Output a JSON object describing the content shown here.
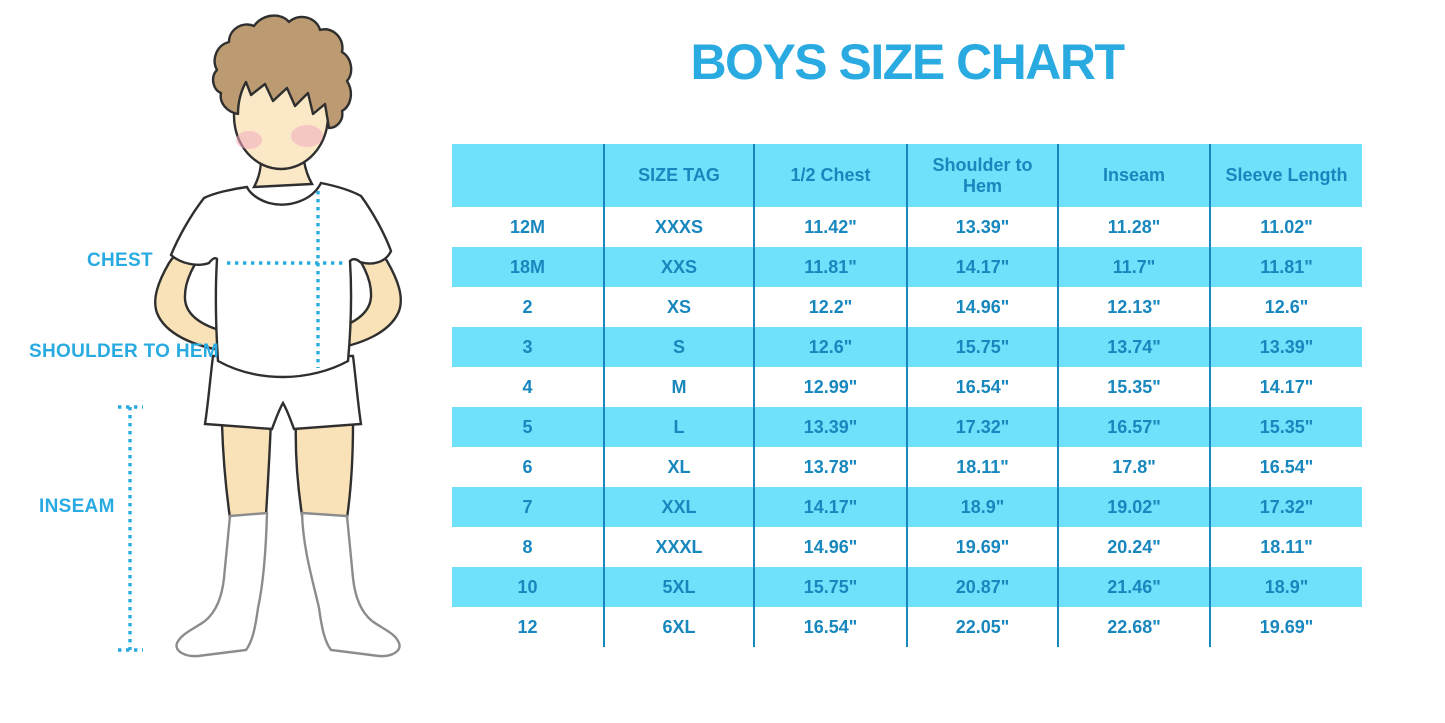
{
  "title": "BOYS SIZE CHART",
  "figure": {
    "illustration": "cartoon boy in white t-shirt, shorts and knee socks with dotted measurement guides",
    "chest_label": "CHEST",
    "shoulder_to_hem_label": "SHOULDER TO HEM",
    "inseam_label": "INSEAM"
  },
  "colors": {
    "title_blue": "#29ABE2",
    "measure_blue": "#29ABE2",
    "table_fill": "#70E1FA",
    "table_text": "#1787BE",
    "table_line": "#1787BE",
    "skin": "#FBE8C6",
    "limb_skin": "#F9E2B8",
    "hair": "#BD9B72",
    "blush": "#F2A9C0",
    "outline": "#2F2F2F",
    "sock_outline": "#8C8C8C"
  },
  "chart_data": {
    "type": "table",
    "title": "BOYS SIZE CHART",
    "columns": [
      "",
      "SIZE TAG",
      "1/2 Chest",
      "Shoulder to Hem",
      "Inseam",
      "Sleeve Length"
    ],
    "rows": [
      [
        "12M",
        "XXXS",
        "11.42\"",
        "13.39\"",
        "11.28\"",
        "11.02\""
      ],
      [
        "18M",
        "XXS",
        "11.81\"",
        "14.17\"",
        "11.7\"",
        "11.81\""
      ],
      [
        "2",
        "XS",
        "12.2\"",
        "14.96\"",
        "12.13\"",
        "12.6\""
      ],
      [
        "3",
        "S",
        "12.6\"",
        "15.75\"",
        "13.74\"",
        "13.39\""
      ],
      [
        "4",
        "M",
        "12.99\"",
        "16.54\"",
        "15.35\"",
        "14.17\""
      ],
      [
        "5",
        "L",
        "13.39\"",
        "17.32\"",
        "16.57\"",
        "15.35\""
      ],
      [
        "6",
        "XL",
        "13.78\"",
        "18.11\"",
        "17.8\"",
        "16.54\""
      ],
      [
        "7",
        "XXL",
        "14.17\"",
        "18.9\"",
        "19.02\"",
        "17.32\""
      ],
      [
        "8",
        "XXXL",
        "14.96\"",
        "19.69\"",
        "20.24\"",
        "18.11\""
      ],
      [
        "10",
        "5XL",
        "15.75\"",
        "20.87\"",
        "21.46\"",
        "18.9\""
      ],
      [
        "12",
        "6XL",
        "16.54\"",
        "22.05\"",
        "22.68\"",
        "19.69\""
      ]
    ],
    "layout": {
      "header_background": "#70E1FA",
      "striped_rows": "alternating white / light-blue starting white",
      "grid": "vertical separator lines only"
    }
  }
}
